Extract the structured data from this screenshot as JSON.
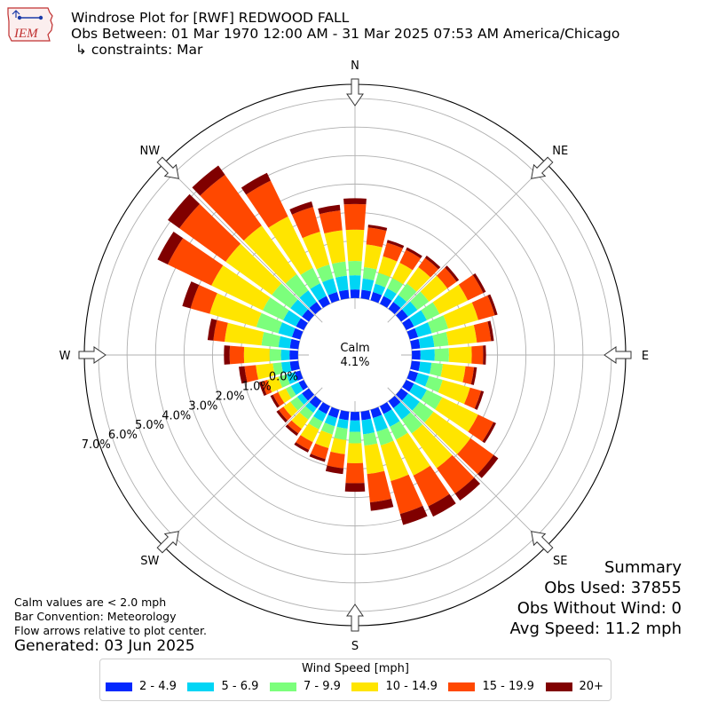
{
  "logo": {
    "text": "IEM"
  },
  "title": {
    "line1": "Windrose Plot for [RWF] REDWOOD FALL",
    "line2": "Obs Between: 01 Mar 1970 12:00 AM - 31 Mar 2025 07:53 AM America/Chicago",
    "line3": " ↳ constraints: Mar"
  },
  "notes": {
    "calm": "Calm values are < 2.0 mph",
    "convention": "Bar Convention: Meteorology",
    "flow": "Flow arrows relative to plot center."
  },
  "generated": "Generated: 03 Jun 2025",
  "summary": {
    "title": "Summary",
    "obs_used": "Obs Used: 37855",
    "obs_without_wind": "Obs Without Wind: 0",
    "avg_speed": "Avg Speed: 11.2 mph"
  },
  "chart_data": {
    "type": "windrose",
    "calm": {
      "label": "Calm",
      "value_label": "4.1%",
      "value": 4.1
    },
    "radial_axis": {
      "unit": "%",
      "min": 0,
      "max": 7.5,
      "calm_offset": 2.0,
      "ticks": [
        0,
        1,
        2,
        3,
        4,
        5,
        6,
        7
      ],
      "tick_labels": [
        "0.0%",
        "1.0%",
        "2.0%",
        "3.0%",
        "4.0%",
        "5.0%",
        "6.0%",
        "7.0%"
      ]
    },
    "compass": [
      "N",
      "NE",
      "E",
      "SE",
      "S",
      "SW",
      "W",
      "NW"
    ],
    "grid": true,
    "legend": {
      "title": "Wind Speed [mph]",
      "placement": "bottom"
    },
    "bins": [
      {
        "label": "2 - 4.9",
        "color": "#0328fd"
      },
      {
        "label": "5 - 6.9",
        "color": "#00d5f5"
      },
      {
        "label": "7 - 9.9",
        "color": "#7cff7c"
      },
      {
        "label": "10 - 14.9",
        "color": "#ffe500"
      },
      {
        "label": "15 - 19.9",
        "color": "#ff4800"
      },
      {
        "label": "20+",
        "color": "#800000"
      }
    ],
    "directions": [
      0,
      10,
      20,
      30,
      40,
      50,
      60,
      70,
      80,
      90,
      100,
      110,
      120,
      130,
      140,
      150,
      160,
      170,
      180,
      190,
      200,
      210,
      220,
      230,
      240,
      250,
      260,
      270,
      280,
      290,
      300,
      310,
      320,
      330,
      340,
      350
    ],
    "cumulative": [
      [
        0.3,
        0.8,
        1.3,
        2.4,
        3.3,
        3.5
      ],
      [
        0.3,
        0.7,
        1.1,
        1.9,
        2.5,
        2.6
      ],
      [
        0.3,
        0.6,
        1.0,
        1.6,
        2.1,
        2.2
      ],
      [
        0.3,
        0.6,
        1.0,
        1.6,
        2.1,
        2.2
      ],
      [
        0.3,
        0.6,
        1.1,
        1.8,
        2.2,
        2.3
      ],
      [
        0.3,
        0.7,
        1.2,
        2.0,
        2.4,
        2.5
      ],
      [
        0.3,
        0.8,
        1.3,
        2.4,
        3.0,
        3.1
      ],
      [
        0.3,
        0.8,
        1.4,
        2.5,
        3.1,
        3.2
      ],
      [
        0.3,
        0.8,
        1.3,
        2.3,
        2.8,
        2.9
      ],
      [
        0.3,
        0.8,
        1.3,
        2.1,
        2.5,
        2.6
      ],
      [
        0.3,
        0.7,
        1.1,
        1.9,
        2.2,
        2.3
      ],
      [
        0.3,
        0.7,
        1.2,
        2.2,
        2.6,
        2.7
      ],
      [
        0.3,
        0.8,
        1.4,
        2.8,
        3.4,
        3.5
      ],
      [
        0.3,
        0.8,
        1.4,
        3.0,
        4.0,
        4.2
      ],
      [
        0.3,
        0.8,
        1.4,
        2.9,
        4.0,
        4.3
      ],
      [
        0.3,
        0.8,
        1.3,
        2.7,
        3.9,
        4.3
      ],
      [
        0.3,
        0.8,
        1.3,
        2.6,
        3.8,
        4.2
      ],
      [
        0.3,
        0.8,
        1.2,
        2.2,
        3.2,
        3.5
      ],
      [
        0.3,
        0.7,
        1.1,
        1.8,
        2.5,
        2.8
      ],
      [
        0.3,
        0.6,
        1.0,
        1.5,
        2.0,
        2.2
      ],
      [
        0.3,
        0.6,
        0.9,
        1.4,
        1.8,
        1.9
      ],
      [
        0.3,
        0.6,
        0.9,
        1.4,
        1.7,
        1.8
      ],
      [
        0.3,
        0.5,
        0.8,
        1.2,
        1.4,
        1.5
      ],
      [
        0.3,
        0.5,
        0.8,
        1.1,
        1.3,
        1.4
      ],
      [
        0.2,
        0.5,
        0.7,
        1.0,
        1.2,
        1.3
      ],
      [
        0.2,
        0.5,
        0.8,
        1.2,
        1.4,
        1.5
      ],
      [
        0.3,
        0.6,
        0.9,
        1.5,
        1.9,
        2.1
      ],
      [
        0.3,
        0.6,
        1.0,
        1.9,
        2.4,
        2.6
      ],
      [
        0.3,
        0.7,
        1.3,
        2.6,
        3.0,
        3.2
      ],
      [
        0.3,
        0.8,
        1.6,
        3.3,
        4.0,
        4.3
      ],
      [
        0.3,
        0.8,
        1.6,
        3.6,
        5.3,
        5.7
      ],
      [
        0.3,
        0.8,
        1.6,
        3.6,
        5.6,
        6.1
      ],
      [
        0.3,
        0.8,
        1.5,
        3.6,
        5.8,
        6.2
      ],
      [
        0.3,
        0.8,
        1.4,
        3.4,
        4.8,
        5.1
      ],
      [
        0.3,
        0.8,
        1.3,
        2.5,
        3.4,
        3.6
      ],
      [
        0.3,
        0.8,
        1.3,
        2.4,
        3.1,
        3.3
      ]
    ]
  }
}
